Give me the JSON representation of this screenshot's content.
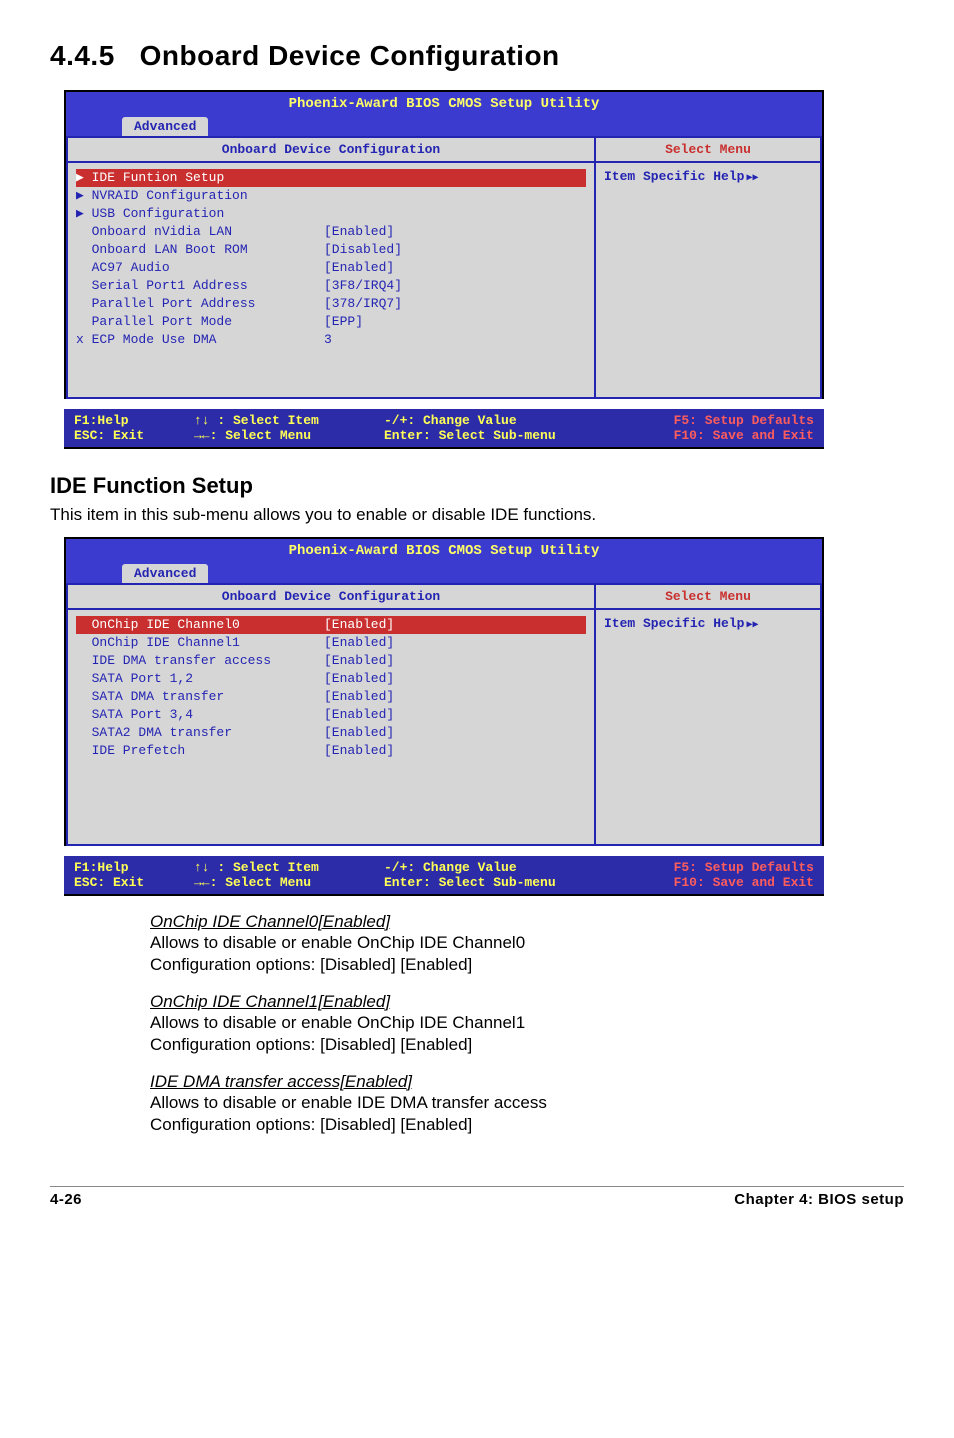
{
  "section": {
    "number": "4.4.5",
    "title": "Onboard Device Configuration"
  },
  "bios1": {
    "utility_title": "Phoenix-Award BIOS CMOS Setup Utility",
    "tab": "Advanced",
    "left_header": "Onboard Device Configuration",
    "right_header": "Select Menu",
    "help_label": "Item Specific Help",
    "rows": [
      {
        "prefix": "arrow",
        "label": "IDE Funtion Setup",
        "value": "",
        "highlight": true
      },
      {
        "prefix": "arrow",
        "label": "NVRAID Configuration",
        "value": ""
      },
      {
        "prefix": "arrow",
        "label": "USB Configuration",
        "value": ""
      },
      {
        "prefix": "indent",
        "label": "Onboard nVidia LAN",
        "value": "[Enabled]"
      },
      {
        "prefix": "indent",
        "label": "Onboard LAN Boot ROM",
        "value": "[Disabled]"
      },
      {
        "prefix": "indent",
        "label": "AC97 Audio",
        "value": "[Enabled]"
      },
      {
        "prefix": "indent",
        "label": "Serial Port1 Address",
        "value": "[3F8/IRQ4]"
      },
      {
        "prefix": "indent",
        "label": "Parallel Port Address",
        "value": "[378/IRQ7]"
      },
      {
        "prefix": "indent",
        "label": "Parallel Port Mode",
        "value": "[EPP]"
      },
      {
        "prefix": "x",
        "label": "ECP Mode Use DMA",
        "value": "3"
      }
    ]
  },
  "ide_setup": {
    "title": "IDE Function Setup",
    "desc": "This item in this sub-menu allows you to enable or disable IDE functions."
  },
  "bios2": {
    "utility_title": "Phoenix-Award BIOS CMOS Setup Utility",
    "tab": "Advanced",
    "left_header": "Onboard Device Configuration",
    "right_header": "Select Menu",
    "help_label": "Item Specific Help",
    "rows": [
      {
        "prefix": "indent",
        "label": "OnChip IDE Channel0",
        "value": "[Enabled]",
        "highlight": true
      },
      {
        "prefix": "indent",
        "label": "OnChip IDE Channel1",
        "value": "[Enabled]"
      },
      {
        "prefix": "indent",
        "label": "IDE DMA transfer access",
        "value": "[Enabled]"
      },
      {
        "prefix": "indent",
        "label": "SATA Port 1,2",
        "value": "[Enabled]"
      },
      {
        "prefix": "indent",
        "label": "SATA DMA transfer",
        "value": "[Enabled]"
      },
      {
        "prefix": "indent",
        "label": "SATA Port 3,4",
        "value": "[Enabled]"
      },
      {
        "prefix": "indent",
        "label": "SATA2 DMA transfer",
        "value": "[Enabled]"
      },
      {
        "prefix": "indent",
        "label": "IDE Prefetch",
        "value": "[Enabled]"
      }
    ]
  },
  "footer": {
    "f1": "F1:Help",
    "esc": "ESC: Exit",
    "sel_item": "↑↓ : Select Item",
    "sel_menu": "→←: Select Menu",
    "change": "-/+: Change Value",
    "enter": "Enter: Select Sub-menu",
    "f5": "F5: Setup Defaults",
    "f10": "F10: Save and Exit"
  },
  "defs": [
    {
      "title": "OnChip IDE Channel0[Enabled]",
      "line1": "Allows to disable or enable OnChip IDE Channel0",
      "line2": "Configuration options: [Disabled] [Enabled]"
    },
    {
      "title": "OnChip IDE Channel1[Enabled]",
      "line1": "Allows to disable or enable OnChip IDE Channel1",
      "line2": "Configuration options: [Disabled] [Enabled]"
    },
    {
      "title": "IDE DMA transfer access[Enabled]",
      "line1": "Allows to disable or enable IDE DMA transfer access",
      "line2": "Configuration options: [Disabled] [Enabled]"
    }
  ],
  "pagefoot": {
    "left": "4-26",
    "right": "Chapter 4: BIOS setup"
  }
}
